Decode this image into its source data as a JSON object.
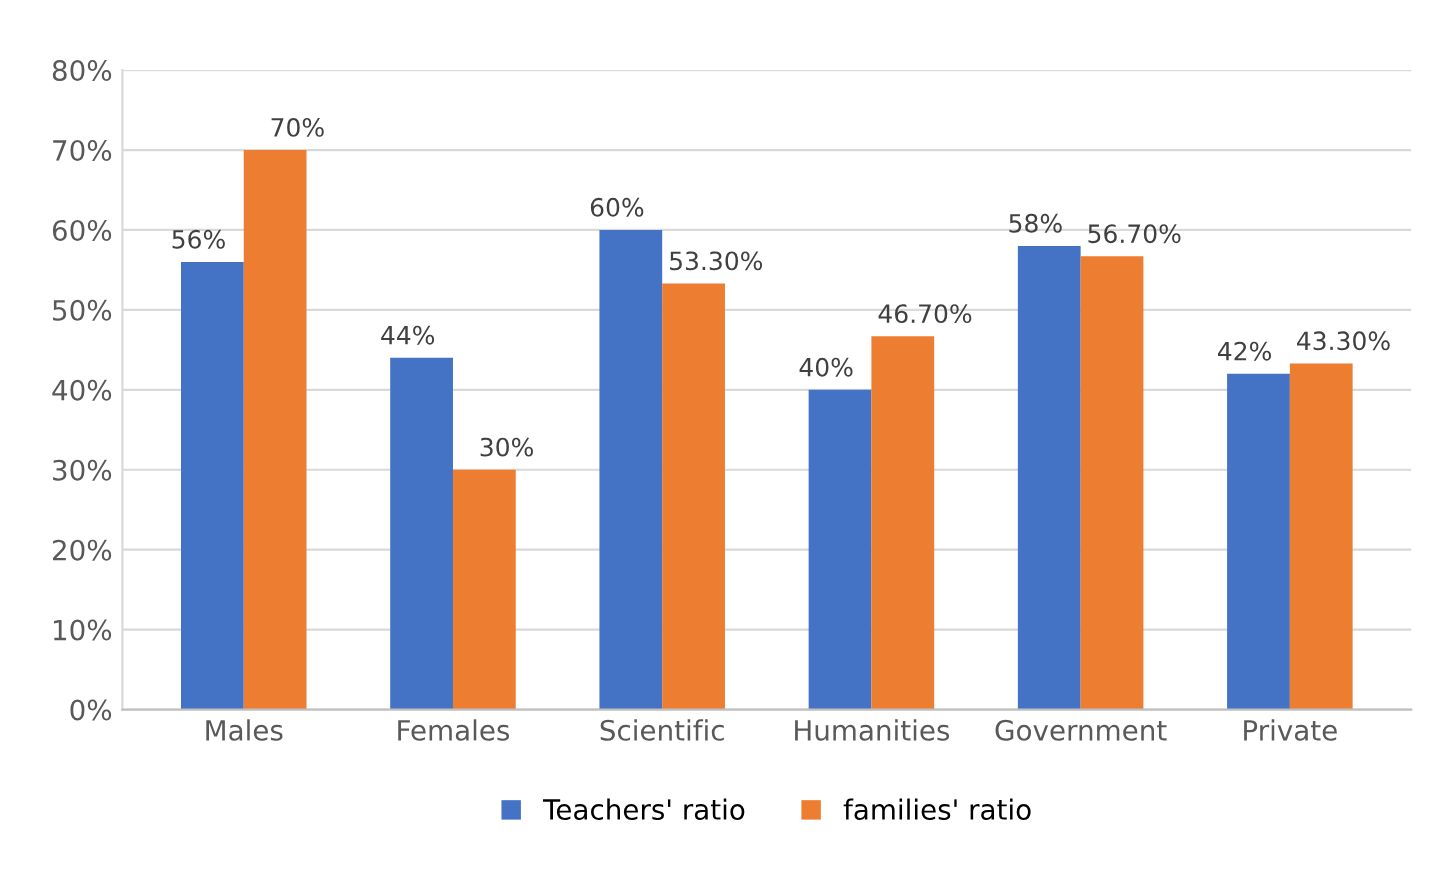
{
  "chart_data": {
    "type": "bar",
    "categories": [
      "Males",
      "Females",
      "Scientific",
      "Humanities",
      "Government",
      "Private"
    ],
    "series": [
      {
        "name": "Teachers' ratio",
        "color": "#4472c4",
        "values": [
          56,
          44,
          60,
          40,
          58,
          42
        ],
        "value_labels": [
          "56%",
          "44%",
          "60%",
          "40%",
          "58%",
          "42%"
        ]
      },
      {
        "name": "families' ratio",
        "color": "#ed7d31",
        "values": [
          70,
          30,
          53.3,
          46.7,
          56.7,
          43.3
        ],
        "value_labels": [
          "70%",
          "30%",
          "53.30%",
          "46.70%",
          "56.70%",
          "43.30%"
        ]
      }
    ],
    "ylim": [
      0,
      80
    ],
    "yticks": [
      {
        "value": 0,
        "label": "0%"
      },
      {
        "value": 10,
        "label": "10%"
      },
      {
        "value": 20,
        "label": "20%"
      },
      {
        "value": 30,
        "label": "30%"
      },
      {
        "value": 40,
        "label": "40%"
      },
      {
        "value": 50,
        "label": "50%"
      },
      {
        "value": 60,
        "label": "60%"
      },
      {
        "value": 70,
        "label": "70%"
      },
      {
        "value": 80,
        "label": "80%"
      }
    ],
    "grid": "y",
    "legend": "bottom"
  }
}
